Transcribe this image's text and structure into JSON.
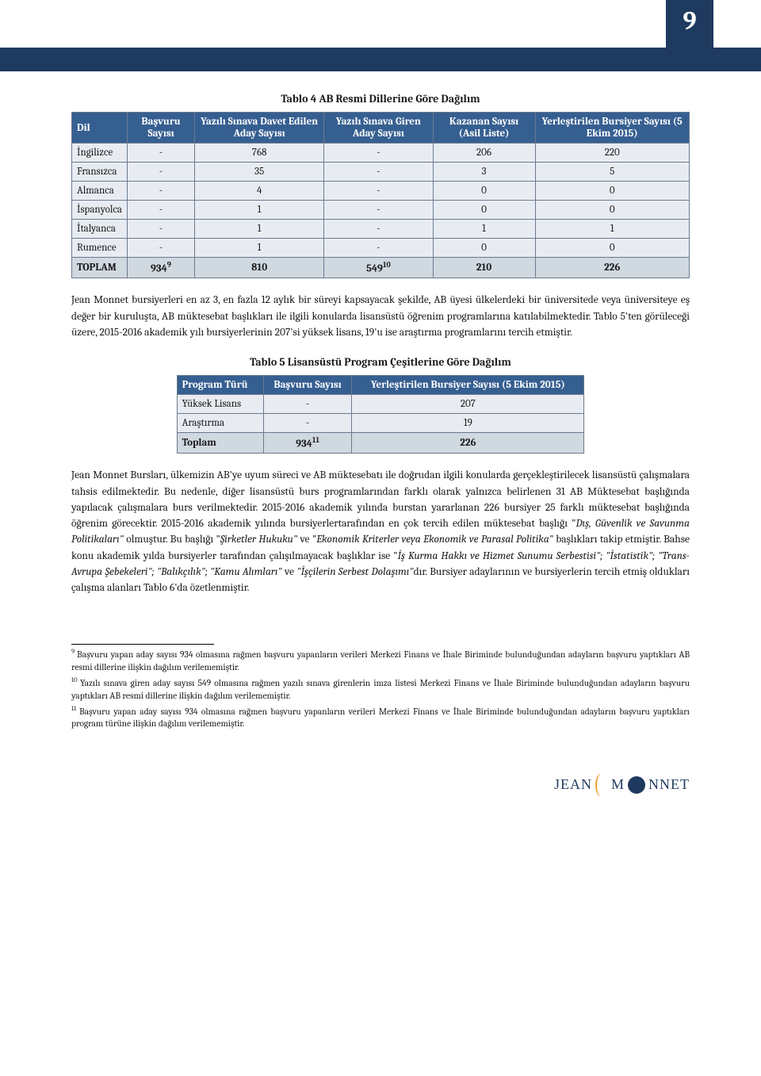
{
  "page_number": "9",
  "table1": {
    "title": "Tablo 4 AB Resmi Dillerine Göre Dağılım",
    "headers": [
      "Dil",
      "Başvuru Sayısı",
      "Yazılı Sınava Davet Edilen Aday Sayısı",
      "Yazılı Sınava Giren Aday Sayısı",
      "Kazanan Sayısı (Asil Liste)",
      "Yerleştirilen Bursiyer Sayısı (5 Ekim 2015)"
    ],
    "rows": [
      [
        "İngilizce",
        "-",
        "768",
        "-",
        "206",
        "220"
      ],
      [
        "Fransızca",
        "-",
        "35",
        "-",
        "3",
        "5"
      ],
      [
        "Almanca",
        "-",
        "4",
        "-",
        "0",
        "0"
      ],
      [
        "İspanyolca",
        "-",
        "1",
        "-",
        "0",
        "0"
      ],
      [
        "İtalyanca",
        "-",
        "1",
        "-",
        "1",
        "1"
      ],
      [
        "Rumence",
        "-",
        "1",
        "-",
        "0",
        "0"
      ]
    ],
    "total_label": "TOPLAM",
    "total": [
      "934",
      "810",
      "549",
      "210",
      "226"
    ],
    "total_sup": {
      "0": "9",
      "2": "10"
    }
  },
  "para1": "Jean Monnet bursiyerleri en az 3, en fazla 12 aylık bir süreyi kapsayacak şekilde, AB üyesi ülkelerdeki bir üniversitede veya üniversiteye eş değer bir kuruluşta, AB müktesebat başlıkları ile ilgili konularda lisansüstü öğrenim programlarına katılabilmektedir. Tablo 5'ten görüleceği üzere, 2015-2016 akademik yılı bursiyerlerinin 207'si yüksek lisans, 19'u ise araştırma programlarını tercih etmiştir.",
  "table2": {
    "title": "Tablo 5 Lisansüstü Program Çeşitlerine Göre Dağılım",
    "headers": [
      "Program Türü",
      "Başvuru Sayısı",
      "Yerleştirilen Bursiyer Sayısı (5 Ekim 2015)"
    ],
    "rows": [
      [
        "Yüksek Lisans",
        "-",
        "207"
      ],
      [
        "Araştırma",
        "-",
        "19"
      ]
    ],
    "total_label": "Toplam",
    "total": [
      "934",
      "226"
    ],
    "total_sup": {
      "0": "11"
    }
  },
  "para2_parts": [
    {
      "t": "Jean Monnet Bursları, ülkemizin AB'ye uyum süreci ve AB müktesebatı ile doğrudan ilgili konularda gerçekleştirilecek lisansüstü çalışmalara tahsis edilmektedir. Bu nedenle, diğer lisansüstü burs programlarından farklı olarak yalnızca belirlenen 31 AB Müktesebat başlığında yapılacak çalışmalara burs verilmektedir. 2015-2016 akademik yılında burstan yararlanan 226 bursiyer 25 farklı müktesebat başlığında öğrenim görecektir. 2015-2016 akademik yılında bursiyerlertarafından en çok tercih edilen müktesebat başlığı \""
    },
    {
      "t": "Dış, Güvenlik ve Savunma Politikaları\"",
      "i": true
    },
    {
      "t": " olmuştur. Bu başlığı \""
    },
    {
      "t": "Şirketler Hukuku\"",
      "i": true
    },
    {
      "t": " ve \""
    },
    {
      "t": "Ekonomik Kriterler veya Ekonomik ve Parasal Politika\"",
      "i": true
    },
    {
      "t": " başlıkları takip etmiştir. Bahse konu akademik yılda bursiyerler tarafından çalışılmayacak başlıklar ise \""
    },
    {
      "t": "İş Kurma Hakkı ve Hizmet Sunumu Serbestisi\"; \"İstatistik\"; \"Trans-Avrupa Şebekeleri\"; \"Balıkçılık\"; \"Kamu Alımları\" ",
      "i": true
    },
    {
      "t": "ve "
    },
    {
      "t": "\"İşçilerin Serbest Dolaşımı\"",
      "i": true
    },
    {
      "t": "dır. Bursiyer adaylarının ve bursiyerlerin tercih etmiş oldukları çalışma alanları Tablo 6'da özetlenmiştir."
    }
  ],
  "footnotes": [
    {
      "n": "9",
      "t": "Başvuru yapan aday sayısı 934 olmasına rağmen başvuru yapanların verileri Merkezi Finans ve İhale Biriminde bulunduğundan adayların başvuru yaptıkları AB resmi dillerine ilişkin dağılım verilememiştir."
    },
    {
      "n": "10",
      "t": "Yazılı sınava giren aday sayısı 549 olmasına rağmen yazılı sınava girenlerin imza listesi Merkezi Finans ve İhale Biriminde bulunduğundan adayların başvuru yaptıkları AB resmi dillerine ilişkin dağılım verilememiştir."
    },
    {
      "n": "11",
      "t": "Başvuru yapan aday sayısı 934 olmasına rağmen başvuru yapanların verileri Merkezi Finans ve İhale Biriminde bulunduğundan adayların başvuru yaptıkları program türüne ilişkin dağılım verilememiştir."
    }
  ],
  "logo": {
    "part1": "JEAN",
    "part2": "M",
    "part3": "NNET"
  }
}
